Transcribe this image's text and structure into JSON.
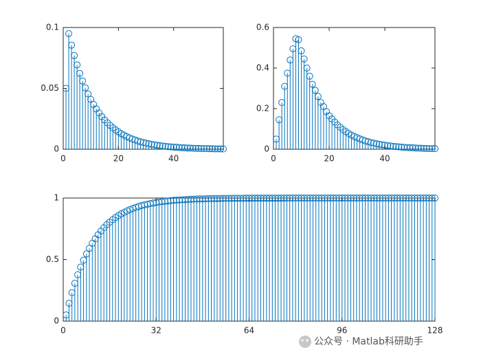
{
  "chart_data": [
    {
      "type": "stem",
      "color": "#0072bd",
      "x": [
        1,
        2,
        3,
        4,
        5,
        6,
        7,
        8,
        9,
        10,
        11,
        12,
        13,
        14,
        15,
        16,
        17,
        18,
        19,
        20,
        21,
        22,
        23,
        24,
        25,
        26,
        27,
        28,
        29,
        30,
        31,
        32,
        33,
        34,
        35,
        36,
        37,
        38,
        39,
        40,
        41,
        42,
        43,
        44,
        45,
        46,
        47,
        48,
        49,
        50,
        51,
        52,
        53,
        54,
        55,
        56,
        57,
        58
      ],
      "values": [
        0.05,
        0.095,
        0.0855,
        0.077,
        0.0693,
        0.0623,
        0.0561,
        0.0505,
        0.0454,
        0.0409,
        0.0368,
        0.0331,
        0.0298,
        0.0268,
        0.0241,
        0.0217,
        0.0196,
        0.0176,
        0.0158,
        0.0143,
        0.0128,
        0.0116,
        0.0104,
        0.0094,
        0.0084,
        0.0076,
        0.0068,
        0.0061,
        0.0055,
        0.005,
        0.0045,
        0.004,
        0.0036,
        0.0033,
        0.0029,
        0.0026,
        0.0024,
        0.0021,
        0.0019,
        0.0017,
        0.0016,
        0.0014,
        0.0013,
        0.0011,
        0.001,
        0.0009,
        0.0008,
        0.0007,
        0.0007,
        0.0006,
        0.0005,
        0.0005,
        0.0004,
        0.0004,
        0.0003,
        0.0003,
        0.0003,
        0.0002
      ],
      "xlim": [
        0,
        58
      ],
      "ylim": [
        0,
        0.1
      ],
      "xticks": [
        0,
        20,
        40
      ],
      "yticks": [
        0,
        0.05,
        0.1
      ]
    },
    {
      "type": "stem",
      "color": "#0072bd",
      "x": [
        1,
        2,
        3,
        4,
        5,
        6,
        7,
        8,
        9,
        10,
        11,
        12,
        13,
        14,
        15,
        16,
        17,
        18,
        19,
        20,
        21,
        22,
        23,
        24,
        25,
        26,
        27,
        28,
        29,
        30,
        31,
        32,
        33,
        34,
        35,
        36,
        37,
        38,
        39,
        40,
        41,
        42,
        43,
        44,
        45,
        46,
        47,
        48,
        49,
        50,
        51,
        52,
        53,
        54,
        55,
        56,
        57,
        58
      ],
      "values": [
        0.05,
        0.145,
        0.23,
        0.31,
        0.375,
        0.44,
        0.495,
        0.545,
        0.54,
        0.485,
        0.445,
        0.4,
        0.36,
        0.32,
        0.29,
        0.26,
        0.23,
        0.21,
        0.185,
        0.165,
        0.149,
        0.134,
        0.12,
        0.108,
        0.097,
        0.087,
        0.078,
        0.07,
        0.063,
        0.057,
        0.051,
        0.046,
        0.041,
        0.037,
        0.033,
        0.03,
        0.027,
        0.024,
        0.022,
        0.02,
        0.018,
        0.016,
        0.014,
        0.013,
        0.012,
        0.01,
        0.009,
        0.008,
        0.007,
        0.007,
        0.006,
        0.005,
        0.005,
        0.004,
        0.004,
        0.003,
        0.003,
        0.003
      ],
      "xlim": [
        0,
        58
      ],
      "ylim": [
        0,
        0.6
      ],
      "xticks": [
        0,
        20,
        40
      ],
      "yticks": [
        0,
        0.2,
        0.4,
        0.6
      ]
    },
    {
      "type": "stem",
      "color": "#0072bd",
      "x": [
        1,
        2,
        3,
        4,
        5,
        6,
        7,
        8,
        9,
        10,
        11,
        12,
        13,
        14,
        15,
        16,
        17,
        18,
        19,
        20,
        21,
        22,
        23,
        24,
        25,
        26,
        27,
        28,
        29,
        30,
        31,
        32,
        33,
        34,
        35,
        36,
        37,
        38,
        39,
        40,
        41,
        42,
        43,
        44,
        45,
        46,
        47,
        48,
        49,
        50,
        51,
        52,
        53,
        54,
        55,
        56,
        57,
        58,
        59,
        60,
        61,
        62,
        63,
        64,
        65,
        66,
        67,
        68,
        69,
        70,
        71,
        72,
        73,
        74,
        75,
        76,
        77,
        78,
        79,
        80,
        81,
        82,
        83,
        84,
        85,
        86,
        87,
        88,
        89,
        90,
        91,
        92,
        93,
        94,
        95,
        96,
        97,
        98,
        99,
        100,
        101,
        102,
        103,
        104,
        105,
        106,
        107,
        108,
        109,
        110,
        111,
        112,
        113,
        114,
        115,
        116,
        117,
        118,
        119,
        120,
        121,
        122,
        123,
        124,
        125,
        126,
        127,
        128
      ],
      "values": [
        0.05,
        0.145,
        0.231,
        0.307,
        0.377,
        0.439,
        0.495,
        0.546,
        0.591,
        0.632,
        0.669,
        0.702,
        0.732,
        0.759,
        0.783,
        0.804,
        0.824,
        0.842,
        0.857,
        0.872,
        0.884,
        0.896,
        0.906,
        0.916,
        0.924,
        0.932,
        0.939,
        0.945,
        0.95,
        0.955,
        0.96,
        0.964,
        0.967,
        0.971,
        0.974,
        0.976,
        0.979,
        0.981,
        0.983,
        0.984,
        0.986,
        0.987,
        0.989,
        0.99,
        0.991,
        0.992,
        0.993,
        0.993,
        0.994,
        0.995,
        0.995,
        0.996,
        0.996,
        0.996,
        0.997,
        0.997,
        0.997,
        0.998,
        0.998,
        0.998,
        0.998,
        0.998,
        0.999,
        0.999,
        0.999,
        0.999,
        0.999,
        0.999,
        0.999,
        0.999,
        0.999,
        0.999,
        0.999,
        0.999,
        0.999,
        0.999,
        1,
        1,
        1,
        1,
        1,
        1,
        1,
        1,
        1,
        1,
        1,
        1,
        1,
        1,
        1,
        1,
        1,
        1,
        1,
        1,
        1,
        1,
        1,
        1,
        1,
        1,
        1,
        1,
        1,
        1,
        1,
        1,
        1,
        1,
        1,
        1,
        1,
        1,
        1,
        1,
        1,
        1,
        1,
        1,
        1,
        1,
        1,
        1,
        1,
        1,
        1,
        1
      ],
      "xlim": [
        0,
        128
      ],
      "ylim": [
        0,
        1
      ],
      "xticks": [
        0,
        32,
        64,
        96,
        128
      ],
      "yticks": [
        0,
        0.5,
        1
      ]
    }
  ],
  "watermark": "公众号 · Matlab科研助手"
}
